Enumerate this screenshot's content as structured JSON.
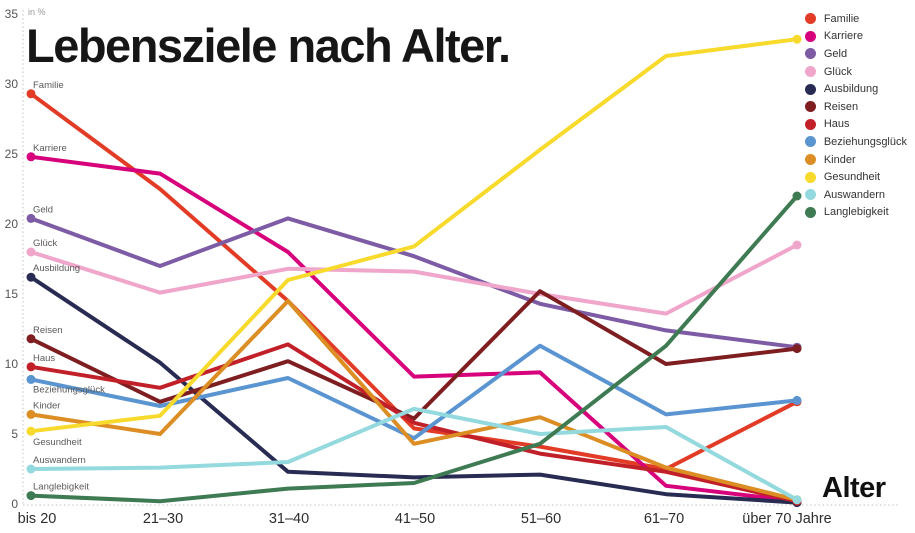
{
  "title": "Lebensziele nach Alter.",
  "unit_label": "in %",
  "x_axis_label": "Alter",
  "chart_data": {
    "type": "line",
    "title": "Lebensziele nach Alter.",
    "ylabel": "in %",
    "xlabel": "Alter",
    "ylim": [
      0,
      35
    ],
    "yticks": [
      0,
      5,
      10,
      15,
      20,
      25,
      30,
      35
    ],
    "grid": "dotted axis lines only",
    "legend_position": "top-right",
    "categories": [
      "bis 20",
      "21–30",
      "31–40",
      "41–50",
      "51–60",
      "61–70",
      "über 70 Jahre"
    ],
    "series": [
      {
        "name": "Familie",
        "color": "#e23b26",
        "values": [
          29.3,
          22.5,
          14.5,
          5.4,
          4.1,
          2.5,
          7.3
        ]
      },
      {
        "name": "Karriere",
        "color": "#d6017b",
        "values": [
          24.8,
          23.6,
          18.0,
          9.1,
          9.4,
          1.3,
          0.2
        ]
      },
      {
        "name": "Geld",
        "color": "#7d5ca5",
        "values": [
          20.4,
          17.0,
          20.4,
          17.7,
          14.3,
          12.4,
          11.2
        ]
      },
      {
        "name": "Glück",
        "color": "#efa6ca",
        "values": [
          18.0,
          15.1,
          16.8,
          16.6,
          15.0,
          13.6,
          18.5
        ]
      },
      {
        "name": "Ausbildung",
        "color": "#282b52",
        "values": [
          16.2,
          10.1,
          2.3,
          1.9,
          2.1,
          0.7,
          0.1
        ]
      },
      {
        "name": "Reisen",
        "color": "#7e1e20",
        "values": [
          11.8,
          7.3,
          10.2,
          6.1,
          15.2,
          10.0,
          11.1
        ]
      },
      {
        "name": "Haus",
        "color": "#c22028",
        "values": [
          9.8,
          8.3,
          11.4,
          5.8,
          3.6,
          2.3,
          0.2
        ]
      },
      {
        "name": "Beziehungsglück",
        "color": "#5b95d1",
        "values": [
          8.9,
          7.0,
          9.0,
          4.7,
          11.3,
          6.4,
          7.4
        ]
      },
      {
        "name": "Kinder",
        "color": "#dc8d23",
        "values": [
          6.4,
          5.0,
          14.5,
          4.3,
          6.2,
          2.6,
          0.3
        ]
      },
      {
        "name": "Gesundheit",
        "color": "#f8da2c",
        "values": [
          5.2,
          6.3,
          16.0,
          18.4,
          25.3,
          32.0,
          33.2
        ]
      },
      {
        "name": "Auswandern",
        "color": "#93d9dd",
        "values": [
          2.5,
          2.6,
          3.0,
          6.8,
          5.0,
          5.5,
          0.3
        ]
      },
      {
        "name": "Langlebigkeit",
        "color": "#3e7a52",
        "values": [
          0.6,
          0.2,
          1.1,
          1.5,
          4.3,
          11.3,
          22.0
        ]
      }
    ]
  }
}
